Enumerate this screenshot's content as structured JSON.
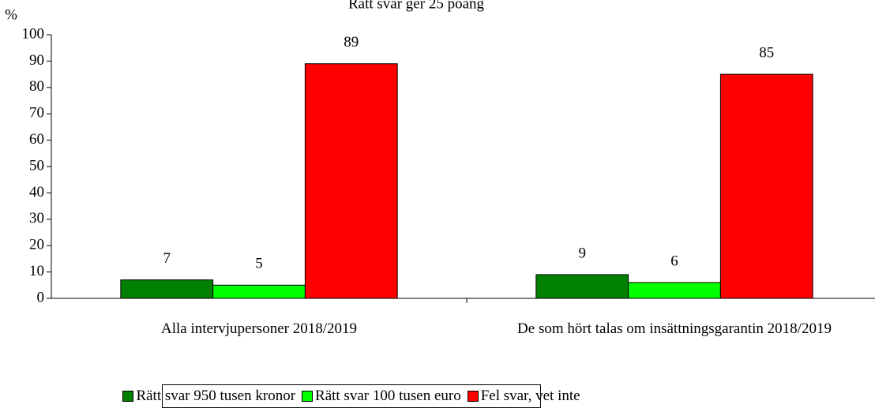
{
  "chart_data": {
    "type": "bar",
    "title": "Rätt svar ger 25 poäng",
    "y_label": "%",
    "categories": [
      "Alla intervjupersoner 2018/2019",
      "De som hört talas om insättningsgarantin 2018/2019"
    ],
    "series": [
      {
        "name": "Rätt svar 950 tusen kronor",
        "color": "#008000",
        "values": [
          7,
          9
        ]
      },
      {
        "name": "Rätt svar 100 tusen euro",
        "color": "#00ff00",
        "values": [
          5,
          6
        ]
      },
      {
        "name": "Fel svar, vet inte",
        "color": "#ff0000",
        "values": [
          89,
          85
        ]
      }
    ],
    "ylim": [
      0,
      100
    ],
    "yticks": [
      0,
      10,
      20,
      30,
      40,
      50,
      60,
      70,
      80,
      90,
      100
    ],
    "grid": false,
    "legend": "bottom"
  }
}
